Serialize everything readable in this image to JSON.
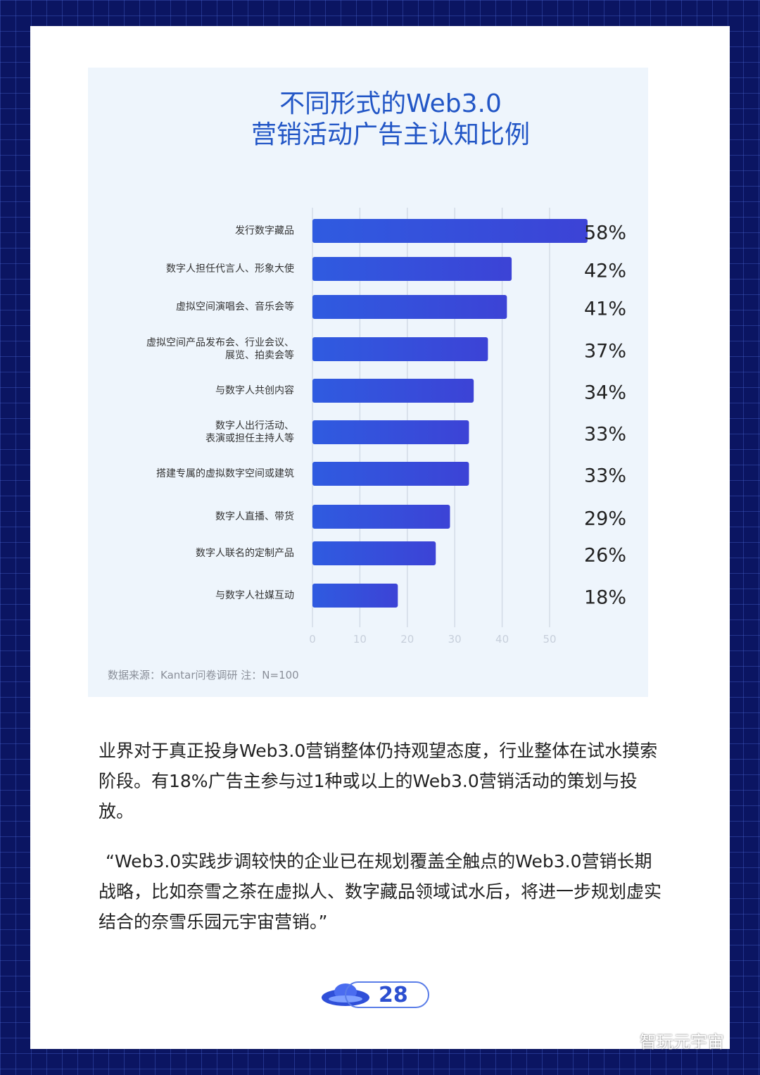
{
  "chart_data": {
    "type": "barh",
    "title": "不同形式的Web3.0\n营销活动广告主认知比例",
    "categories": [
      "发行数字藏品",
      "数字人担任代言人、形象大使",
      "虚拟空间演唱会、音乐会等",
      "虚拟空间产品发布会、行业会议、\n展览、拍卖会等",
      "与数字人共创内容",
      "数字人出行活动、\n表演或担任主持人等",
      "搭建专属的虚拟数字空间或建筑",
      "数字人直播、带货",
      "数字人联名的定制产品",
      "与数字人社媒互动"
    ],
    "values": [
      58,
      42,
      41,
      37,
      34,
      33,
      33,
      29,
      26,
      18
    ],
    "value_labels": [
      "58%",
      "42%",
      "41%",
      "37%",
      "34%",
      "33%",
      "33%",
      "29%",
      "26%",
      "18%"
    ],
    "color": "#2f5be0",
    "xlim": [
      0,
      55
    ],
    "xticks": [
      0,
      10,
      20,
      30,
      40,
      50
    ],
    "grid": true,
    "source": "数据来源：Kantar问卷调研 注：N=100"
  },
  "body": {
    "paragraphs": [
      "业界对于真正投身Web3.0营销整体仍持观望态度，行业整体在试水摸索阶段。有18%广告主参与过1种或以上的Web3.0营销活动的策划与投放。",
      "“Web3.0实践步调较快的企业已在规划覆盖全触点的Web3.0营销长期战略，比如奈雪之茶在虚拟人、数字藏品领域试水后，将进一步规划虚实结合的奈雪乐园元宇宙营销。”"
    ]
  },
  "footer": {
    "page_number": "28",
    "brand": "智玩元宇宙"
  }
}
